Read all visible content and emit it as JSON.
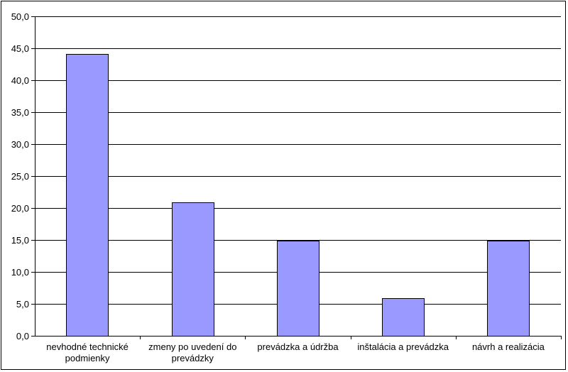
{
  "chart_data": {
    "type": "bar",
    "title": "",
    "xlabel": "",
    "ylabel": "",
    "categories": [
      "nevhodné technické podmienky",
      "zmeny po uvedení do prevádzky",
      "prevádzka a údržba",
      "inštalácia a prevádzka",
      "návrh a realizácia"
    ],
    "values": [
      44.1,
      20.9,
      14.9,
      5.9,
      14.9
    ],
    "ylim": [
      0,
      50
    ],
    "yticks": [
      0,
      5,
      10,
      15,
      20,
      25,
      30,
      35,
      40,
      45,
      50
    ],
    "ytick_labels": [
      "0,0",
      "5,0",
      "10,0",
      "15,0",
      "20,0",
      "25,0",
      "30,0",
      "35,0",
      "40,0",
      "45,0",
      "50,0"
    ],
    "grid": true,
    "legend": "none",
    "colors": {
      "bar_fill": "#9999ff",
      "bar_stroke": "#000000",
      "grid": "#000000",
      "axis": "#000000"
    }
  }
}
